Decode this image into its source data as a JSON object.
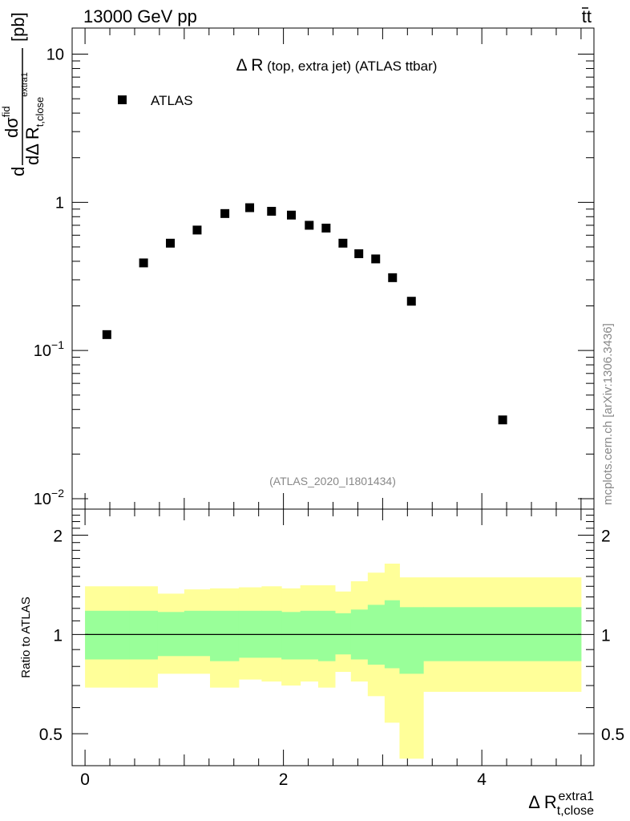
{
  "header": {
    "left": "13000 GeV pp",
    "right_base": "t",
    "right_bar": "t"
  },
  "watermark": "mcplots.cern.ch [arXiv:1306.3436]",
  "analysis_id": "(ATLAS_2020_I1801434)",
  "chart_data": [
    {
      "type": "scatter",
      "panel": "main",
      "title": {
        "prefix": "Δ R",
        "rest": " (top, extra jet) (ATLAS ttbar)"
      },
      "ylabel": {
        "num_d": "d",
        "num_sigma": "σ",
        "num_sup": "fid",
        "outer_d": "d",
        "den_d": "dΔ R",
        "den_sub": "t,close",
        "den_sup": "extra1",
        "unit": "[pb]"
      },
      "yscale": "log",
      "ylim": [
        0.0085,
        15
      ],
      "xlim": [
        -0.13,
        5.13
      ],
      "y_ticks": [
        {
          "value": 10,
          "base": "10",
          "exp": ""
        },
        {
          "value": 1,
          "base": "1",
          "exp": ""
        },
        {
          "value": 0.1,
          "base": "10",
          "exp": "−1"
        },
        {
          "value": 0.01,
          "base": "10",
          "exp": "−2"
        }
      ],
      "legend": {
        "label": "ATLAS",
        "position": "top-left"
      },
      "series": [
        {
          "name": "ATLAS",
          "x": [
            0.22,
            0.59,
            0.86,
            1.13,
            1.41,
            1.66,
            1.88,
            2.08,
            2.26,
            2.43,
            2.6,
            2.76,
            2.93,
            3.1,
            3.29,
            4.21
          ],
          "y": [
            0.128,
            0.39,
            0.53,
            0.65,
            0.84,
            0.92,
            0.87,
            0.82,
            0.7,
            0.67,
            0.53,
            0.45,
            0.415,
            0.31,
            0.215,
            0.034
          ]
        }
      ]
    },
    {
      "type": "area",
      "panel": "ratio",
      "ylabel": "Ratio to ATLAS",
      "xlabel": {
        "main": "Δ R",
        "sub": "t,close",
        "sup": "extra1"
      },
      "yscale": "log",
      "ylim": [
        0.4,
        2.4
      ],
      "xlim": [
        -0.13,
        5.13
      ],
      "y_ticks": [
        {
          "value": 0.5,
          "label": "0.5"
        },
        {
          "value": 1,
          "label": "1"
        },
        {
          "value": 2,
          "label": "2"
        }
      ],
      "x_ticks": [
        {
          "value": 0,
          "label": "0"
        },
        {
          "value": 2,
          "label": "2"
        },
        {
          "value": 4,
          "label": "4"
        }
      ],
      "reference_line": 1,
      "bin_edges": [
        0.0,
        0.45,
        0.73,
        1.0,
        1.26,
        1.55,
        1.78,
        1.98,
        2.17,
        2.35,
        2.52,
        2.68,
        2.85,
        3.02,
        3.17,
        3.41,
        5.0
      ],
      "bands": [
        {
          "name": "total uncertainty",
          "color": "#ffff99",
          "lower": [
            0.69,
            0.69,
            0.76,
            0.76,
            0.69,
            0.73,
            0.72,
            0.7,
            0.72,
            0.69,
            0.77,
            0.72,
            0.65,
            0.54,
            0.42,
            0.67
          ],
          "upper": [
            1.4,
            1.4,
            1.33,
            1.37,
            1.38,
            1.39,
            1.4,
            1.38,
            1.41,
            1.41,
            1.35,
            1.45,
            1.54,
            1.64,
            1.49,
            1.49
          ]
        },
        {
          "name": "statistical uncertainty",
          "color": "#99ff99",
          "lower": [
            0.84,
            0.84,
            0.86,
            0.86,
            0.83,
            0.85,
            0.85,
            0.84,
            0.84,
            0.83,
            0.87,
            0.84,
            0.81,
            0.79,
            0.76,
            0.83
          ],
          "upper": [
            1.18,
            1.18,
            1.17,
            1.18,
            1.18,
            1.18,
            1.18,
            1.17,
            1.18,
            1.18,
            1.16,
            1.19,
            1.23,
            1.27,
            1.21,
            1.21
          ]
        }
      ]
    }
  ]
}
